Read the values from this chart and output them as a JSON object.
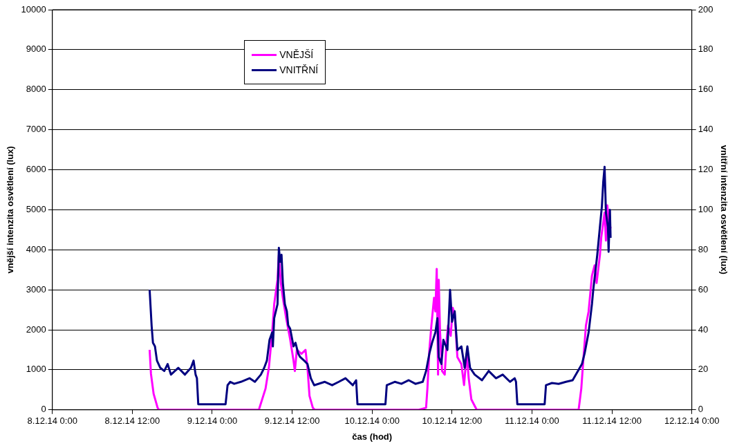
{
  "chart_data": {
    "type": "line",
    "xlabel": "čas (hod)",
    "ylabel": "vnější intenzita osvětlení (lux)",
    "y2label": "vnitřní intenzita osvětlení (lux)",
    "xlim": [
      "--12-08T00:00",
      "--12-12T00:00"
    ],
    "xticks": [
      {
        "value": "--12-08T00:00",
        "label": "8.12.14 0:00"
      },
      {
        "value": "--12-08T12:00",
        "label": "8.12.14 12:00"
      },
      {
        "value": "--12-09T00:00",
        "label": "9.12.14 0:00"
      },
      {
        "value": "--12-09T12:00",
        "label": "9.12.14 12:00"
      },
      {
        "value": "--12-10T00:00",
        "label": "10.12.14 0:00"
      },
      {
        "value": "--12-10T12:00",
        "label": "10.12.14 12:00"
      },
      {
        "value": "--12-11T00:00",
        "label": "11.12.14 0:00"
      },
      {
        "value": "--12-11T12:00",
        "label": "11.12.14 12:00"
      },
      {
        "value": "--12-12T00:00",
        "label": "12.12.14 0:00"
      }
    ],
    "ylim": [
      0,
      10000
    ],
    "yticks": [
      0,
      1000,
      2000,
      3000,
      4000,
      5000,
      6000,
      7000,
      8000,
      9000,
      10000
    ],
    "y2lim": [
      0,
      200
    ],
    "y2ticks": [
      0,
      20,
      40,
      60,
      80,
      100,
      120,
      140,
      160,
      180,
      200
    ],
    "grid": "y",
    "legend": "top left",
    "marker": "none",
    "line_style": "solid",
    "series": [
      {
        "name": "VNĚJŠÍ",
        "color": "#ff00ff",
        "x": [
          "--12-08T14:36",
          "--12-08T14:48",
          "--12-08T15:12",
          "--12-08T15:48",
          "--12-08T16:00",
          "--12-09T07:00",
          "--12-09T08:00",
          "--12-09T08:30",
          "--12-09T09:00",
          "--12-09T09:18",
          "--12-09T09:48",
          "--12-09T10:00",
          "--12-09T10:18",
          "--12-09T10:36",
          "--12-09T11:06",
          "--12-09T11:42",
          "--12-09T12:12",
          "--12-09T12:24",
          "--12-09T12:42",
          "--12-09T13:24",
          "--12-09T14:00",
          "--12-09T14:18",
          "--12-09T14:36",
          "--12-09T15:06",
          "--12-09T15:24",
          "--12-10T07:00",
          "--12-10T08:06",
          "--12-10T08:18",
          "--12-10T08:36",
          "--12-10T08:54",
          "--12-10T09:18",
          "--12-10T09:30",
          "--12-10T09:42",
          "--12-10T09:54",
          "--12-10T10:00",
          "--12-10T10:12",
          "--12-10T10:30",
          "--12-10T10:54",
          "--12-10T11:12",
          "--12-10T11:24",
          "--12-10T11:48",
          "--12-10T12:06",
          "--12-10T12:24",
          "--12-10T12:48",
          "--12-10T13:24",
          "--12-10T13:48",
          "--12-10T14:12",
          "--12-10T14:30",
          "--12-10T14:54",
          "--12-10T15:42",
          "--12-11T07:00",
          "--12-11T07:24",
          "--12-11T07:42",
          "--12-11T08:06",
          "--12-11T08:30",
          "--12-11T09:00",
          "--12-11T09:24",
          "--12-11T09:42",
          "--12-11T10:12",
          "--12-11T10:24",
          "--12-11T10:54",
          "--12-11T11:06",
          "--12-11T11:18",
          "--12-11T11:42",
          "--12-11T11:48"
        ],
        "values": [
          1500,
          900,
          400,
          50,
          0,
          0,
          530,
          1050,
          1940,
          2640,
          3250,
          3870,
          3170,
          2800,
          2290,
          1760,
          1230,
          970,
          1500,
          1400,
          1500,
          1050,
          350,
          50,
          0,
          0,
          50,
          530,
          1500,
          2110,
          2800,
          2460,
          3520,
          880,
          3250,
          1940,
          970,
          880,
          1760,
          2110,
          1850,
          2550,
          2380,
          1320,
          1140,
          620,
          1410,
          790,
          260,
          0,
          0,
          530,
          1230,
          2110,
          2460,
          3350,
          3610,
          3170,
          3870,
          4310,
          4930,
          4230,
          5110,
          4490,
          4580
        ]
      },
      {
        "name": "VNITŘNÍ",
        "color": "#000080",
        "axis": "y2",
        "x": [
          "--12-08T14:36",
          "--12-08T14:54",
          "--12-08T15:06",
          "--12-08T15:24",
          "--12-08T15:42",
          "--12-08T16:12",
          "--12-08T16:48",
          "--12-08T17:18",
          "--12-08T17:48",
          "--12-08T18:54",
          "--12-08T19:54",
          "--12-08T20:48",
          "--12-08T21:12",
          "--12-08T21:30",
          "--12-08T21:42",
          "--12-08T21:54",
          "--12-09T00:06",
          "--12-09T02:00",
          "--12-09T02:18",
          "--12-09T02:42",
          "--12-09T03:18",
          "--12-09T04:18",
          "--12-09T05:36",
          "--12-09T06:24",
          "--12-09T07:18",
          "--12-09T07:48",
          "--12-09T08:12",
          "--12-09T08:36",
          "--12-09T09:00",
          "--12-09T09:06",
          "--12-09T09:18",
          "--12-09T09:48",
          "--12-09T10:00",
          "--12-09T10:12",
          "--12-09T10:24",
          "--12-09T10:36",
          "--12-09T10:54",
          "--12-09T11:12",
          "--12-09T11:24",
          "--12-09T11:42",
          "--12-09T11:54",
          "--12-09T12:12",
          "--12-09T12:30",
          "--12-09T12:54",
          "--12-09T13:12",
          "--12-09T13:48",
          "--12-09T14:18",
          "--12-09T14:48",
          "--12-09T15:18",
          "--12-09T16:54",
          "--12-09T18:00",
          "--12-09T19:00",
          "--12-09T20:00",
          "--12-09T21:06",
          "--12-09T21:36",
          "--12-09T21:48",
          "--12-10T02:00",
          "--12-10T02:12",
          "--12-10T03:24",
          "--12-10T04:24",
          "--12-10T05:30",
          "--12-10T06:30",
          "--12-10T07:36",
          "--12-10T08:06",
          "--12-10T08:36",
          "--12-10T09:00",
          "--12-10T09:30",
          "--12-10T09:48",
          "--12-10T10:00",
          "--12-10T10:24",
          "--12-10T10:42",
          "--12-10T11:18",
          "--12-10T11:42",
          "--12-10T12:00",
          "--12-10T12:24",
          "--12-10T12:48",
          "--12-10T13:24",
          "--12-10T13:54",
          "--12-10T14:18",
          "--12-10T14:42",
          "--12-10T15:24",
          "--12-10T16:30",
          "--12-10T17:30",
          "--12-10T18:36",
          "--12-10T19:36",
          "--12-10T20:42",
          "--12-10T21:24",
          "--12-10T21:36",
          "--12-10T21:48",
          "--12-11T01:54",
          "--12-11T02:06",
          "--12-11T03:00",
          "--12-11T04:00",
          "--12-11T05:06",
          "--12-11T06:06",
          "--12-11T07:30",
          "--12-11T07:54",
          "--12-11T08:30",
          "--12-11T09:00",
          "--12-11T09:12",
          "--12-11T09:48",
          "--12-11T10:12",
          "--12-11T10:30",
          "--12-11T10:42",
          "--12-11T10:54",
          "--12-11T11:06",
          "--12-11T11:24",
          "--12-11T11:30",
          "--12-11T11:42",
          "--12-11T11:48"
        ],
        "values": [
          60,
          42,
          33.5,
          31.7,
          24.6,
          21,
          19.4,
          22.9,
          17.6,
          21,
          17.6,
          21,
          24.6,
          17.6,
          15.8,
          2.8,
          2.8,
          2.8,
          12.3,
          14,
          13,
          14,
          15.8,
          14,
          17.6,
          21,
          24.6,
          35,
          38.7,
          31.7,
          45.8,
          52.8,
          81,
          74,
          77.5,
          63.4,
          52.8,
          49.3,
          42.3,
          40.5,
          37,
          31.7,
          33.5,
          28.2,
          26.4,
          24.6,
          22.9,
          15.8,
          12.3,
          14,
          12.3,
          14,
          15.8,
          12.3,
          14.8,
          2.8,
          2.8,
          12.3,
          14,
          13,
          14.8,
          13,
          14,
          19.4,
          28.2,
          33.5,
          38.7,
          45.8,
          26.4,
          22.9,
          35,
          29.9,
          60,
          44,
          49.3,
          29.9,
          31.7,
          21,
          31.7,
          21,
          17.6,
          14.8,
          19.4,
          15.8,
          17.6,
          14,
          15.8,
          14,
          2.8,
          2.8,
          12.3,
          13.4,
          13,
          14,
          14.8,
          22.9,
          28.2,
          38.7,
          52.8,
          60,
          77.5,
          91.5,
          102,
          114,
          121.5,
          98.6,
          91.5,
          79,
          100,
          86
        ]
      }
    ]
  }
}
